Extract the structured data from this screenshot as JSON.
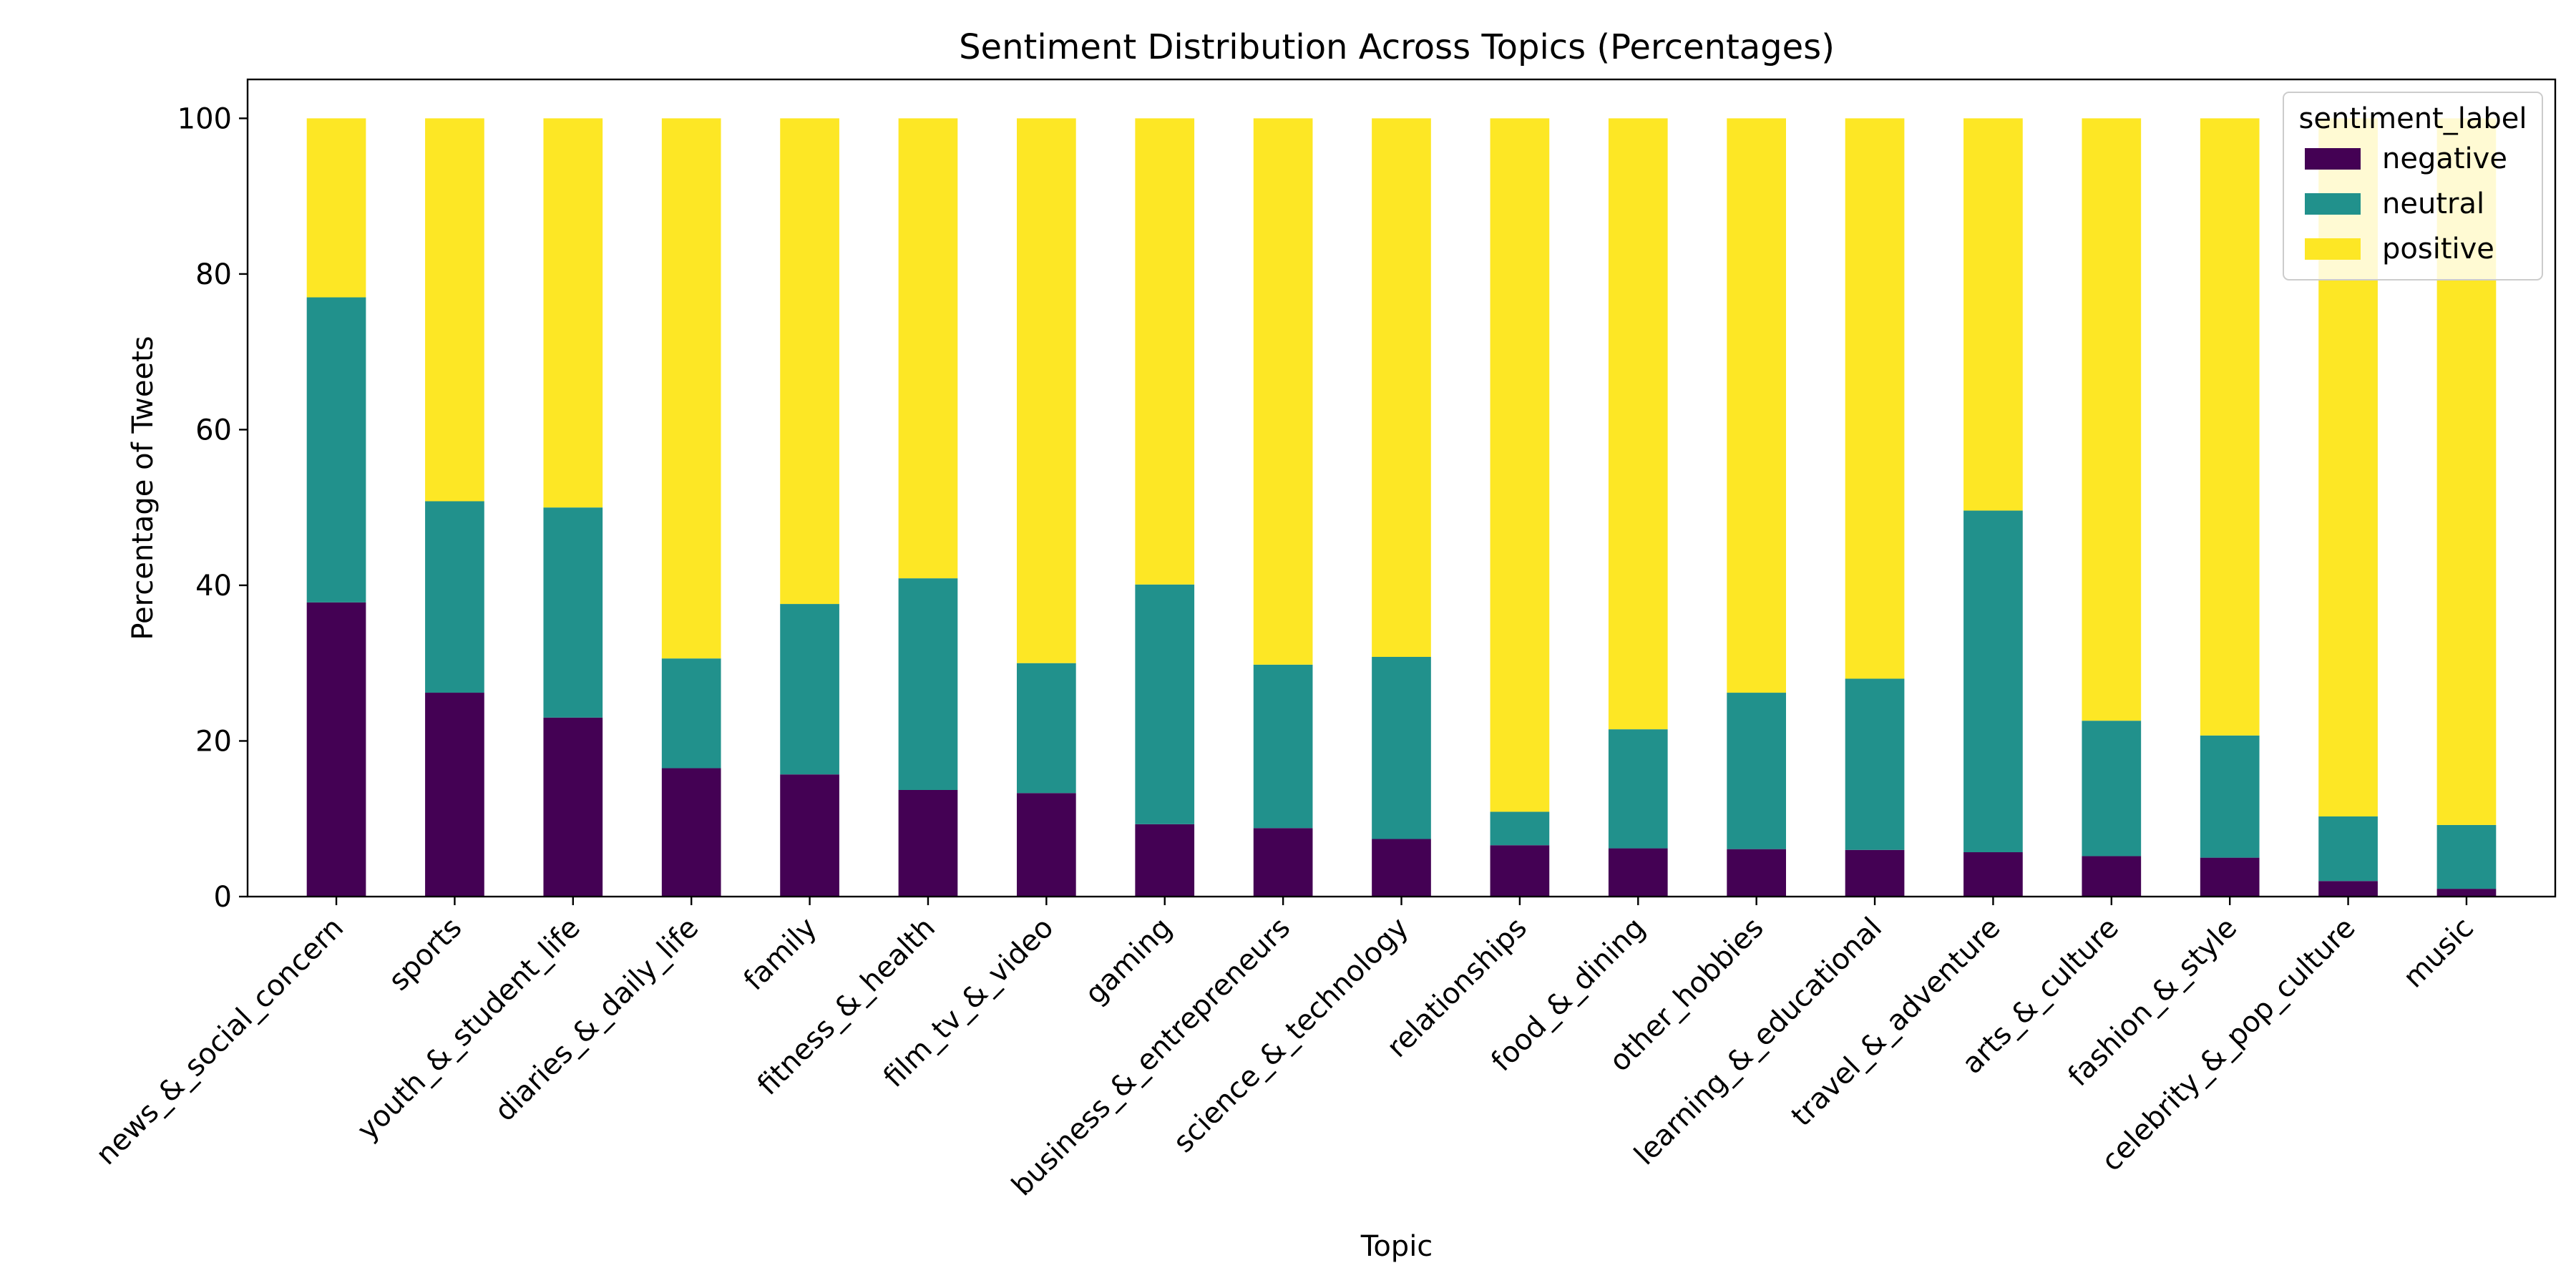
{
  "chart_data": {
    "type": "bar",
    "stacked": true,
    "title": "Sentiment Distribution Across Topics (Percentages)",
    "xlabel": "Topic",
    "ylabel": "Percentage of Tweets",
    "ylim": [
      0,
      105
    ],
    "yticks": [
      0,
      20,
      40,
      60,
      80,
      100
    ],
    "grid": false,
    "legend": {
      "title": "sentiment_label",
      "placement": "top-right"
    },
    "categories": [
      "news_&_social_concern",
      "sports",
      "youth_&_student_life",
      "diaries_&_daily_life",
      "family",
      "fitness_&_health",
      "film_tv_&_video",
      "gaming",
      "business_&_entrepreneurs",
      "science_&_technology",
      "relationships",
      "food_&_dining",
      "other_hobbies",
      "learning_&_educational",
      "travel_&_adventure",
      "arts_&_culture",
      "fashion_&_style",
      "celebrity_&_pop_culture",
      "music"
    ],
    "series": [
      {
        "name": "negative",
        "color": "#440154",
        "values": [
          37.8,
          26.2,
          23.0,
          16.5,
          15.7,
          13.7,
          13.3,
          9.3,
          8.8,
          7.4,
          6.6,
          6.2,
          6.1,
          6.0,
          5.7,
          5.2,
          5.0,
          2.0,
          1.0
        ]
      },
      {
        "name": "neutral",
        "color": "#21918c",
        "values": [
          39.2,
          24.6,
          27.0,
          14.1,
          21.9,
          27.2,
          16.7,
          30.8,
          21.0,
          23.4,
          4.3,
          15.3,
          20.1,
          22.0,
          43.9,
          17.4,
          15.7,
          8.3,
          8.2
        ]
      },
      {
        "name": "positive",
        "color": "#fde725",
        "values": [
          23.0,
          49.2,
          50.0,
          69.4,
          62.4,
          59.1,
          70.0,
          59.9,
          70.2,
          69.2,
          89.1,
          78.5,
          73.8,
          72.0,
          50.4,
          77.4,
          79.3,
          89.7,
          90.8
        ]
      }
    ]
  }
}
